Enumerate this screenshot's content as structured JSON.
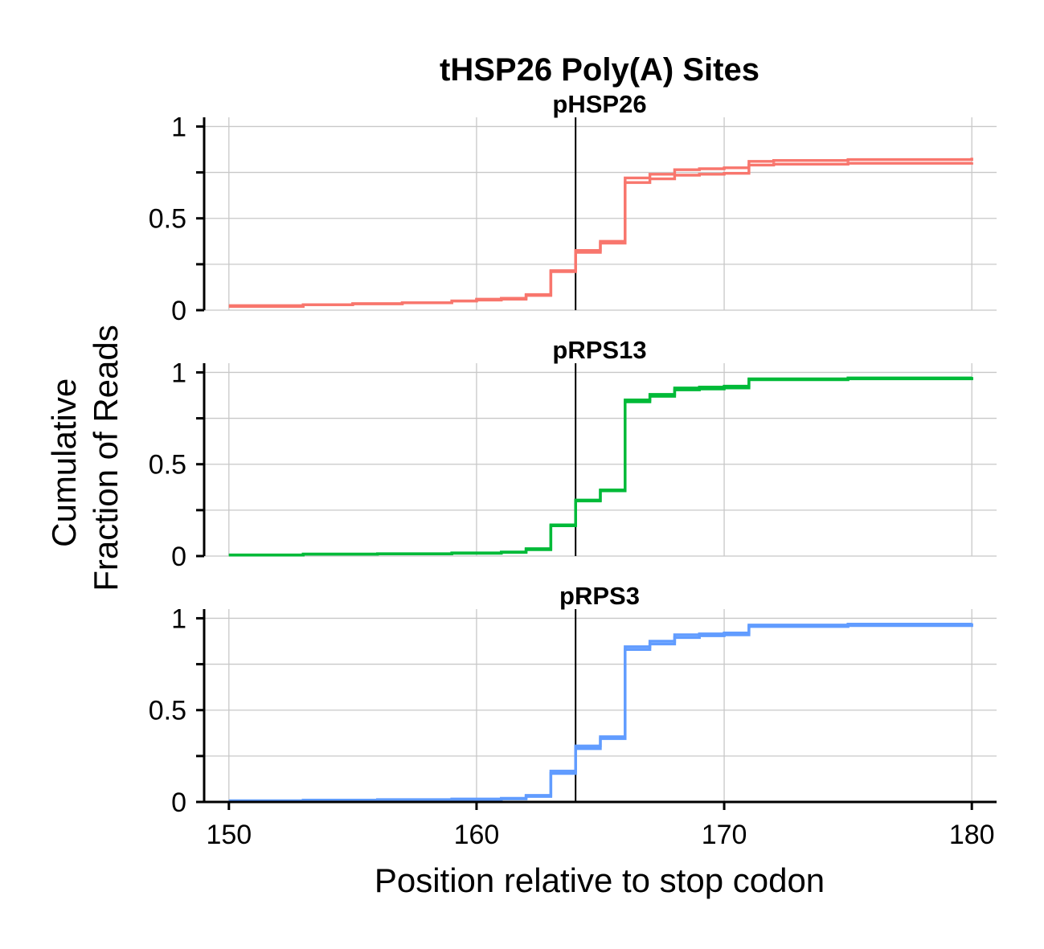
{
  "chart_data": {
    "type": "line",
    "step": true,
    "title": "tHSP26 Poly(A) Sites",
    "xlabel": "Position relative to stop codon",
    "ylabel": [
      "Cumulative",
      "Fraction of Reads"
    ],
    "xlim": [
      149,
      181
    ],
    "ylim": [
      0,
      1.05
    ],
    "x_ticks": [
      150,
      160,
      170,
      180
    ],
    "y_ticks": [
      0,
      0.5,
      1
    ],
    "y_tick_labels": [
      "0",
      "0.5",
      "1"
    ],
    "y_minor_ticks": [
      0.25,
      0.75
    ],
    "vertical_line_x": 164,
    "grid": true,
    "panels": [
      {
        "name": "pHSP26",
        "color": "#F8766D",
        "series": [
          {
            "x": [
              150,
              153,
              155,
              157,
              159,
              160,
              161,
              162,
              163,
              164,
              165,
              166,
              167,
              168,
              169,
              170,
              171,
              172,
              175,
              180
            ],
            "values": [
              0.025,
              0.03,
              0.035,
              0.04,
              0.05,
              0.06,
              0.065,
              0.085,
              0.215,
              0.315,
              0.365,
              0.695,
              0.715,
              0.735,
              0.74,
              0.745,
              0.79,
              0.795,
              0.8,
              0.805
            ]
          },
          {
            "x": [
              150,
              153,
              155,
              157,
              159,
              160,
              161,
              162,
              163,
              164,
              165,
              166,
              167,
              168,
              169,
              170,
              171,
              172,
              175,
              180
            ],
            "values": [
              0.02,
              0.03,
              0.035,
              0.04,
              0.05,
              0.055,
              0.06,
              0.08,
              0.21,
              0.325,
              0.375,
              0.72,
              0.74,
              0.765,
              0.77,
              0.775,
              0.81,
              0.815,
              0.82,
              0.83
            ]
          }
        ]
      },
      {
        "name": "pRPS13",
        "color": "#00BA38",
        "series": [
          {
            "x": [
              150,
              153,
              156,
              159,
              161,
              162,
              163,
              164,
              165,
              166,
              167,
              168,
              169,
              170,
              171,
              175,
              180
            ],
            "values": [
              0.005,
              0.01,
              0.012,
              0.015,
              0.02,
              0.035,
              0.165,
              0.3,
              0.355,
              0.84,
              0.87,
              0.905,
              0.91,
              0.915,
              0.96,
              0.965,
              0.97
            ]
          },
          {
            "x": [
              150,
              153,
              156,
              159,
              161,
              162,
              163,
              164,
              165,
              166,
              167,
              168,
              169,
              170,
              171,
              175,
              180
            ],
            "values": [
              0.006,
              0.011,
              0.013,
              0.017,
              0.022,
              0.04,
              0.17,
              0.305,
              0.36,
              0.85,
              0.88,
              0.915,
              0.92,
              0.925,
              0.965,
              0.97,
              0.975
            ]
          }
        ]
      },
      {
        "name": "pRPS3",
        "color": "#619CFF",
        "series": [
          {
            "x": [
              150,
              153,
              156,
              159,
              161,
              162,
              163,
              164,
              165,
              166,
              167,
              168,
              169,
              170,
              171,
              175,
              180
            ],
            "values": [
              0.005,
              0.008,
              0.01,
              0.013,
              0.017,
              0.03,
              0.155,
              0.29,
              0.345,
              0.83,
              0.86,
              0.895,
              0.905,
              0.91,
              0.955,
              0.96,
              0.965
            ]
          },
          {
            "x": [
              150,
              153,
              156,
              159,
              161,
              162,
              163,
              164,
              165,
              166,
              167,
              168,
              169,
              170,
              171,
              175,
              180
            ],
            "values": [
              0.007,
              0.01,
              0.013,
              0.016,
              0.02,
              0.036,
              0.168,
              0.305,
              0.355,
              0.845,
              0.875,
              0.91,
              0.915,
              0.92,
              0.963,
              0.968,
              0.973
            ]
          }
        ]
      }
    ]
  }
}
